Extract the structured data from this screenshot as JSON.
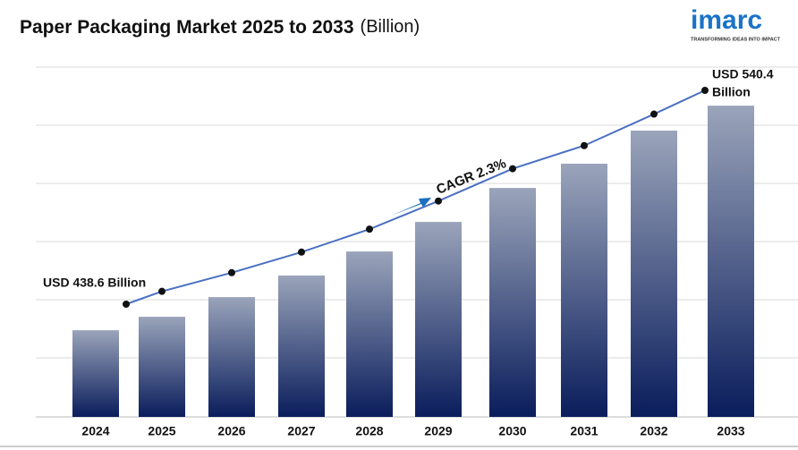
{
  "chart_data": {
    "type": "bar-line",
    "title": "Paper Packaging Market 2025 to 2033",
    "title_unit": "(Billion)",
    "logo": {
      "name": "imarc",
      "tagline": "TRANSFORMING IDEAS INTO IMPACT"
    },
    "categories": [
      "2024",
      "2025",
      "2026",
      "2027",
      "2028",
      "2029",
      "2030",
      "2031",
      "2032",
      "2033"
    ],
    "values": [
      438.6,
      444.7,
      453.6,
      463.4,
      474.3,
      487.7,
      503.1,
      514.1,
      529.1,
      540.4
    ],
    "ylim": [
      399.3,
      557.9
    ],
    "bar_gradient": [
      "#9aa4ba",
      "#0a1d5c"
    ],
    "line_color": "#4a70c2",
    "start_label": "USD 438.6 Billion",
    "end_label": [
      "USD 540.4",
      "Billion"
    ],
    "cagr_label": "CAGR 2.3%",
    "arrow_color": "#1a6fc0"
  }
}
